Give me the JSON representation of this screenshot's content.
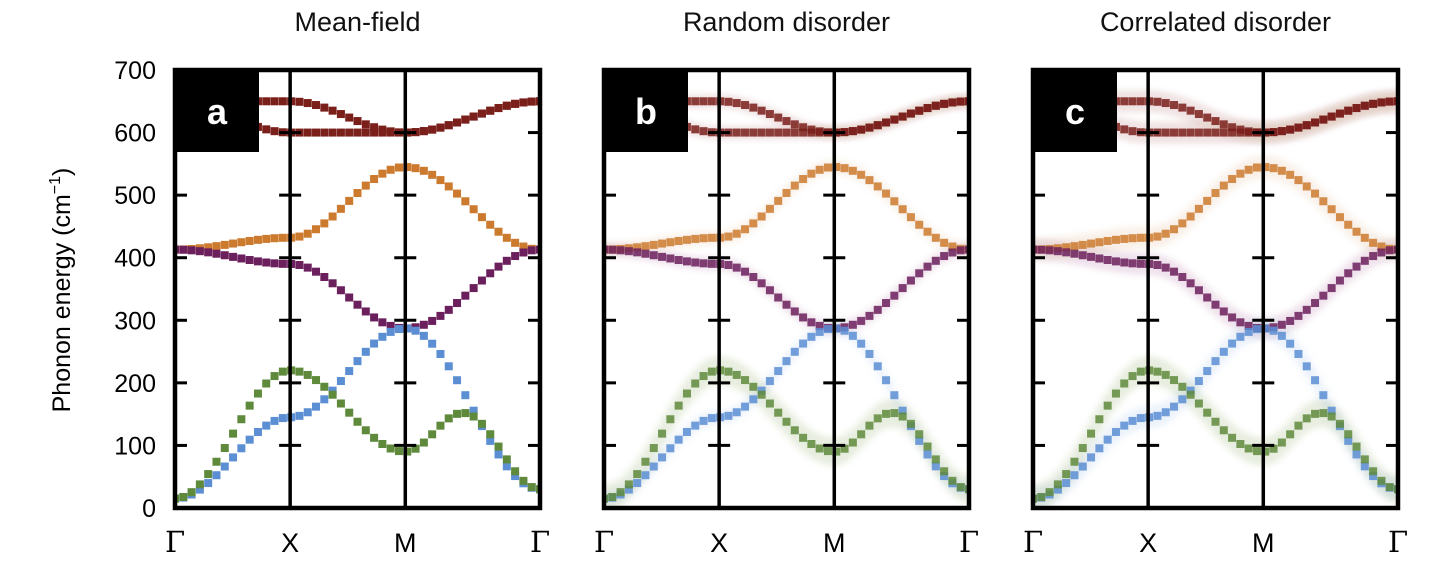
{
  "colors": {
    "top": "#7a1f1a",
    "orange": "#cc7a2e",
    "purple": "#6b1f5c",
    "blue": "#5b8ed3",
    "green": "#5f8a3c",
    "frame": "#000000"
  },
  "chart_data": {
    "type": "scatter",
    "ylabel": "Phonon energy (cm",
    "ylabel_sup": "−1",
    "ylabel_close": ")",
    "ylim": [
      0,
      700
    ],
    "yticks": [
      0,
      100,
      200,
      300,
      400,
      500,
      600,
      700
    ],
    "xticks": [
      "Γ",
      "X",
      "M",
      "Γ"
    ],
    "x_positions": [
      0,
      1,
      2,
      3.17
    ],
    "panels": [
      {
        "id": "a",
        "title": "Mean-field",
        "label": "a",
        "broadened": false,
        "correlated": false
      },
      {
        "id": "b",
        "title": "Random disorder",
        "label": "b",
        "broadened": true,
        "correlated": false
      },
      {
        "id": "c",
        "title": "Correlated disorder",
        "label": "c",
        "broadened": true,
        "correlated": true
      }
    ],
    "series": [
      {
        "name": "",
        "color_key": "top",
        "points": [
          [
            0,
            650
          ],
          [
            1,
            650
          ],
          [
            2,
            600
          ],
          [
            3.17,
            650
          ]
        ]
      },
      {
        "name": "",
        "color_key": "top",
        "points": [
          [
            0,
            650
          ],
          [
            1,
            600
          ],
          [
            2,
            600
          ],
          [
            3.17,
            650
          ]
        ]
      },
      {
        "name": "",
        "color_key": "orange",
        "points": [
          [
            0,
            413
          ],
          [
            1,
            432
          ],
          [
            2,
            545
          ],
          [
            3.17,
            413
          ]
        ]
      },
      {
        "name": "",
        "color_key": "purple",
        "points": [
          [
            0,
            413
          ],
          [
            1,
            390
          ],
          [
            2,
            287
          ],
          [
            3.17,
            413
          ]
        ]
      },
      {
        "name": "",
        "color_key": "blue",
        "points": [
          [
            0,
            15
          ],
          [
            1,
            145
          ],
          [
            2,
            287
          ],
          [
            3.17,
            30
          ]
        ]
      },
      {
        "name": "",
        "color_key": "green",
        "points": [
          [
            0,
            15
          ],
          [
            1,
            220
          ],
          [
            2,
            90
          ],
          [
            2.5,
            152
          ],
          [
            3.17,
            30
          ]
        ]
      }
    ]
  }
}
